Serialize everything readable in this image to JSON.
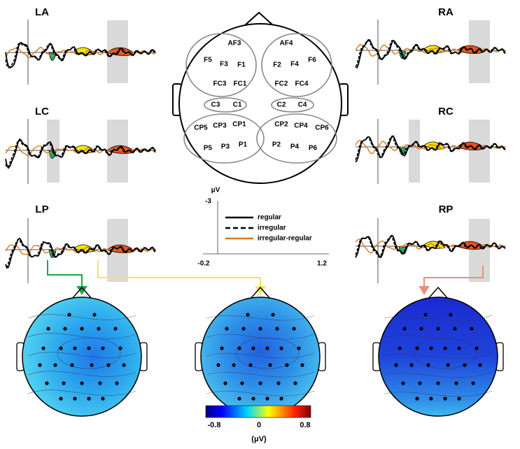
{
  "panels": [
    "LA",
    "LC",
    "LP",
    "RA",
    "RC",
    "RP"
  ],
  "electrodes": [
    "AF3",
    "F5",
    "F3",
    "F1",
    "FC3",
    "FC1",
    "AF4",
    "F2",
    "F4",
    "F6",
    "FC2",
    "FC4",
    "C3",
    "C1",
    "C2",
    "C4",
    "CP5",
    "CP3",
    "CP1",
    "P5",
    "P3",
    "P1",
    "CP2",
    "CP4",
    "CP6",
    "P2",
    "P4",
    "P6"
  ],
  "legend": {
    "items": [
      "regular",
      "irregular",
      "irregular-regular"
    ],
    "y_unit": "μV",
    "y_tick": "-3",
    "x_ticks": [
      "-0.2",
      "1.2"
    ]
  },
  "colorbar": {
    "ticks": [
      "-0.8",
      "0",
      "0.8"
    ],
    "unit": "(μV)"
  }
}
